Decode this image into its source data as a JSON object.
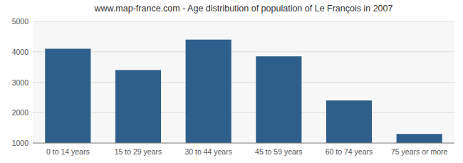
{
  "chart_data": {
    "type": "bar",
    "title": "www.map-france.com - Age distribution of population of Le François in 2007",
    "categories": [
      "0 to 14 years",
      "15 to 29 years",
      "30 to 44 years",
      "45 to 59 years",
      "60 to 74 years",
      "75 years or more"
    ],
    "values": [
      4100,
      3400,
      4400,
      3850,
      2400,
      1300
    ],
    "color": "#2e5f8a",
    "ylim": [
      1000,
      5000
    ],
    "yticks": [
      1000,
      2000,
      3000,
      4000,
      5000
    ],
    "grid": true
  }
}
